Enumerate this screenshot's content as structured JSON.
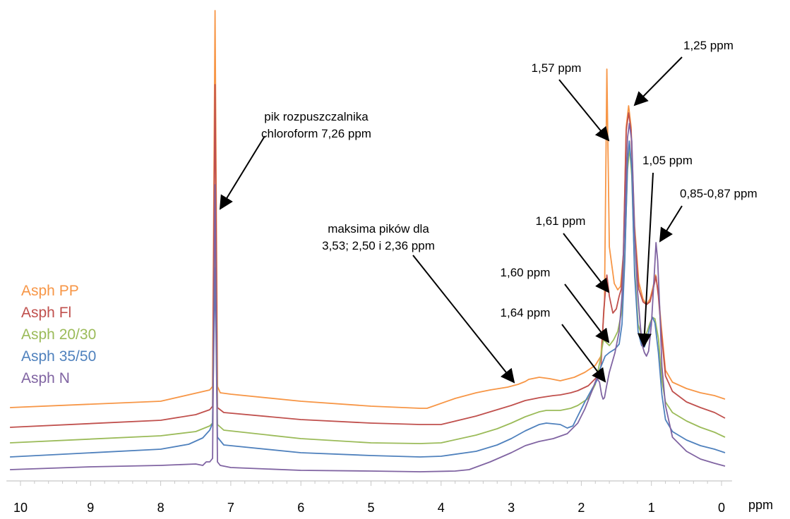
{
  "chart_data": {
    "type": "line",
    "title": "",
    "xlabel": "ppm",
    "ylabel": "",
    "x_reversed": true,
    "xlim": [
      10.2,
      -0.15
    ],
    "x_ticks": [
      10,
      9,
      8,
      7,
      6,
      5,
      4,
      3,
      2,
      1,
      0
    ],
    "x_tick_labels": [
      "10",
      "9",
      "8",
      "7",
      "6",
      "5",
      "4",
      "3",
      "2",
      "1",
      "0"
    ],
    "y_axis_shown": false,
    "grid": false,
    "legend_position": "left",
    "series": [
      {
        "name": "Asph PP",
        "color": "#F79646",
        "points": [
          [
            10.15,
            578
          ],
          [
            8,
            569
          ],
          [
            7.3,
            553
          ],
          [
            7.26,
            548
          ],
          [
            7.225,
            15
          ],
          [
            7.19,
            548
          ],
          [
            7.15,
            557
          ],
          [
            7.0,
            559
          ],
          [
            6,
            569
          ],
          [
            5,
            576
          ],
          [
            4.3,
            579
          ],
          [
            4.2,
            579
          ],
          [
            3.8,
            565
          ],
          [
            3.5,
            557
          ],
          [
            3.3,
            553
          ],
          [
            3.05,
            549
          ],
          [
            2.9,
            545
          ],
          [
            2.8,
            541
          ],
          [
            2.75,
            538
          ],
          [
            2.6,
            535
          ],
          [
            2.45,
            537
          ],
          [
            2.3,
            540
          ],
          [
            2.1,
            535
          ],
          [
            1.95,
            528
          ],
          [
            1.8,
            518
          ],
          [
            1.72,
            505
          ],
          [
            1.67,
            430
          ],
          [
            1.635,
            98
          ],
          [
            1.6,
            350
          ],
          [
            1.53,
            402
          ],
          [
            1.48,
            411
          ],
          [
            1.44,
            406
          ],
          [
            1.4,
            360
          ],
          [
            1.36,
            180
          ],
          [
            1.325,
            150
          ],
          [
            1.29,
            180
          ],
          [
            1.24,
            320
          ],
          [
            1.18,
            400
          ],
          [
            1.12,
            424
          ],
          [
            1.07,
            432
          ],
          [
            1.02,
            424
          ],
          [
            0.98,
            408
          ],
          [
            0.94,
            390
          ],
          [
            0.9,
            415
          ],
          [
            0.86,
            462
          ],
          [
            0.8,
            525
          ],
          [
            0.7,
            542
          ],
          [
            0.5,
            551
          ],
          [
            0.3,
            557
          ],
          [
            0.1,
            561
          ],
          [
            -0.05,
            566
          ]
        ]
      },
      {
        "name": "Asph Fl",
        "color": "#C0504D",
        "points": [
          [
            10.15,
            606
          ],
          [
            8,
            596
          ],
          [
            7.5,
            588
          ],
          [
            7.3,
            581
          ],
          [
            7.26,
            576
          ],
          [
            7.225,
            120
          ],
          [
            7.19,
            578
          ],
          [
            7.1,
            585
          ],
          [
            6,
            595
          ],
          [
            5,
            600
          ],
          [
            4.3,
            602
          ],
          [
            4.0,
            602
          ],
          [
            3.5,
            590
          ],
          [
            3.2,
            581
          ],
          [
            3.0,
            575
          ],
          [
            2.8,
            568
          ],
          [
            2.6,
            564
          ],
          [
            2.4,
            561
          ],
          [
            2.3,
            560
          ],
          [
            2.15,
            557
          ],
          [
            2.05,
            554
          ],
          [
            1.9,
            547
          ],
          [
            1.78,
            535
          ],
          [
            1.72,
            520
          ],
          [
            1.68,
            440
          ],
          [
            1.635,
            390
          ],
          [
            1.6,
            420
          ],
          [
            1.55,
            444
          ],
          [
            1.5,
            438
          ],
          [
            1.46,
            420
          ],
          [
            1.43,
            410
          ],
          [
            1.4,
            360
          ],
          [
            1.36,
            185
          ],
          [
            1.325,
            160
          ],
          [
            1.29,
            185
          ],
          [
            1.24,
            330
          ],
          [
            1.18,
            410
          ],
          [
            1.12,
            428
          ],
          [
            1.07,
            432
          ],
          [
            1.02,
            428
          ],
          [
            0.98,
            412
          ],
          [
            0.935,
            392
          ],
          [
            0.9,
            420
          ],
          [
            0.86,
            470
          ],
          [
            0.8,
            533
          ],
          [
            0.7,
            555
          ],
          [
            0.5,
            570
          ],
          [
            0.3,
            578
          ],
          [
            0.1,
            585
          ],
          [
            -0.05,
            593
          ]
        ]
      },
      {
        "name": "Asph 20/30",
        "color": "#9BBB59",
        "points": [
          [
            10.15,
            628
          ],
          [
            8,
            618
          ],
          [
            7.5,
            612
          ],
          [
            7.3,
            604
          ],
          [
            7.26,
            600
          ],
          [
            7.225,
            300
          ],
          [
            7.19,
            602
          ],
          [
            7.1,
            610
          ],
          [
            6,
            622
          ],
          [
            5,
            628
          ],
          [
            4.3,
            629
          ],
          [
            4.0,
            628
          ],
          [
            3.5,
            617
          ],
          [
            3.2,
            608
          ],
          [
            3.0,
            600
          ],
          [
            2.8,
            591
          ],
          [
            2.6,
            584
          ],
          [
            2.5,
            582
          ],
          [
            2.3,
            582
          ],
          [
            2.15,
            579
          ],
          [
            2.05,
            575
          ],
          [
            1.9,
            565
          ],
          [
            1.8,
            545
          ],
          [
            1.73,
            510
          ],
          [
            1.685,
            482
          ],
          [
            1.65,
            485
          ],
          [
            1.6,
            490
          ],
          [
            1.54,
            482
          ],
          [
            1.48,
            470
          ],
          [
            1.42,
            440
          ],
          [
            1.38,
            360
          ],
          [
            1.34,
            240
          ],
          [
            1.31,
            210
          ],
          [
            1.28,
            250
          ],
          [
            1.24,
            380
          ],
          [
            1.19,
            460
          ],
          [
            1.14,
            476
          ],
          [
            1.1,
            478
          ],
          [
            1.06,
            470
          ],
          [
            1.02,
            458
          ],
          [
            0.985,
            450
          ],
          [
            0.95,
            452
          ],
          [
            0.9,
            480
          ],
          [
            0.85,
            540
          ],
          [
            0.8,
            570
          ],
          [
            0.7,
            585
          ],
          [
            0.5,
            597
          ],
          [
            0.3,
            606
          ],
          [
            0.1,
            613
          ],
          [
            -0.05,
            620
          ]
        ]
      },
      {
        "name": "Asph 35/50",
        "color": "#4F81BD",
        "points": [
          [
            10.15,
            648
          ],
          [
            8,
            637
          ],
          [
            7.6,
            630
          ],
          [
            7.4,
            621
          ],
          [
            7.3,
            610
          ],
          [
            7.26,
            600
          ],
          [
            7.225,
            380
          ],
          [
            7.19,
            620
          ],
          [
            7.1,
            631
          ],
          [
            6,
            642
          ],
          [
            5,
            646
          ],
          [
            4.3,
            648
          ],
          [
            4.0,
            647
          ],
          [
            3.5,
            640
          ],
          [
            3.2,
            631
          ],
          [
            3.0,
            622
          ],
          [
            2.8,
            611
          ],
          [
            2.6,
            602
          ],
          [
            2.5,
            600
          ],
          [
            2.3,
            602
          ],
          [
            2.2,
            607
          ],
          [
            2.12,
            604
          ],
          [
            2.05,
            590
          ],
          [
            1.95,
            570
          ],
          [
            1.85,
            552
          ],
          [
            1.78,
            540
          ],
          [
            1.74,
            525
          ],
          [
            1.7,
            515
          ],
          [
            1.66,
            505
          ],
          [
            1.6,
            500
          ],
          [
            1.52,
            495
          ],
          [
            1.46,
            488
          ],
          [
            1.42,
            460
          ],
          [
            1.38,
            370
          ],
          [
            1.34,
            230
          ],
          [
            1.315,
            200
          ],
          [
            1.28,
            240
          ],
          [
            1.24,
            390
          ],
          [
            1.19,
            470
          ],
          [
            1.14,
            490
          ],
          [
            1.1,
            492
          ],
          [
            1.06,
            480
          ],
          [
            1.02,
            462
          ],
          [
            0.985,
            450
          ],
          [
            0.95,
            458
          ],
          [
            0.9,
            500
          ],
          [
            0.85,
            560
          ],
          [
            0.8,
            595
          ],
          [
            0.7,
            612
          ],
          [
            0.5,
            624
          ],
          [
            0.3,
            632
          ],
          [
            0.1,
            637
          ],
          [
            -0.05,
            642
          ]
        ]
      },
      {
        "name": "Asph N",
        "color": "#8064A2",
        "points": [
          [
            10.15,
            666
          ],
          [
            9,
            662
          ],
          [
            8,
            660
          ],
          [
            7.5,
            658
          ],
          [
            7.4,
            660
          ],
          [
            7.35,
            655
          ],
          [
            7.3,
            655
          ],
          [
            7.26,
            650
          ],
          [
            7.225,
            262
          ],
          [
            7.19,
            655
          ],
          [
            7.15,
            660
          ],
          [
            7.0,
            663
          ],
          [
            6,
            667
          ],
          [
            5,
            668
          ],
          [
            4.3,
            669
          ],
          [
            3.8,
            668
          ],
          [
            3.6,
            666
          ],
          [
            3.3,
            655
          ],
          [
            3.0,
            642
          ],
          [
            2.8,
            632
          ],
          [
            2.6,
            626
          ],
          [
            2.4,
            622
          ],
          [
            2.2,
            615
          ],
          [
            2.05,
            600
          ],
          [
            1.95,
            580
          ],
          [
            1.85,
            555
          ],
          [
            1.78,
            536
          ],
          [
            1.74,
            542
          ],
          [
            1.71,
            560
          ],
          [
            1.69,
            566
          ],
          [
            1.67,
            564
          ],
          [
            1.64,
            548
          ],
          [
            1.6,
            528
          ],
          [
            1.52,
            500
          ],
          [
            1.46,
            470
          ],
          [
            1.42,
            420
          ],
          [
            1.38,
            310
          ],
          [
            1.34,
            195
          ],
          [
            1.315,
            175
          ],
          [
            1.28,
            200
          ],
          [
            1.24,
            330
          ],
          [
            1.2,
            410
          ],
          [
            1.16,
            460
          ],
          [
            1.13,
            490
          ],
          [
            1.1,
            500
          ],
          [
            1.07,
            505
          ],
          [
            1.04,
            498
          ],
          [
            1.0,
            460
          ],
          [
            0.96,
            390
          ],
          [
            0.935,
            344
          ],
          [
            0.91,
            370
          ],
          [
            0.88,
            440
          ],
          [
            0.85,
            520
          ],
          [
            0.8,
            575
          ],
          [
            0.7,
            620
          ],
          [
            0.5,
            640
          ],
          [
            0.3,
            651
          ],
          [
            0.1,
            657
          ],
          [
            -0.05,
            661
          ]
        ]
      }
    ],
    "annotations": [
      {
        "lines": [
          "pik rozpuszczalnika",
          "chloroform 7,26 ppm"
        ]
      },
      {
        "lines": [
          "maksima pików dla",
          "3,53; 2,50 i 2,36 ppm"
        ]
      },
      {
        "lines": [
          "1,57 ppm"
        ]
      },
      {
        "lines": [
          "1,25 ppm"
        ]
      },
      {
        "lines": [
          "1,05 ppm"
        ]
      },
      {
        "lines": [
          "0,85-0,87 ppm"
        ]
      },
      {
        "lines": [
          "1,61 ppm"
        ]
      },
      {
        "lines": [
          "1,60 ppm"
        ]
      },
      {
        "lines": [
          "1,64 ppm"
        ]
      }
    ]
  }
}
